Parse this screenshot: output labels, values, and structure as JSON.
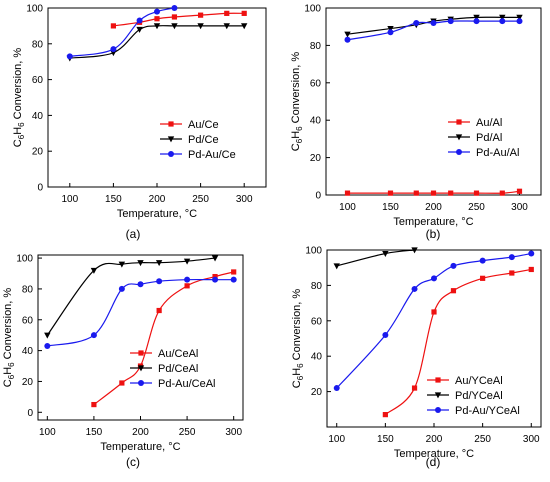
{
  "chart_data": [
    {
      "panel_label": "(a)",
      "type": "line",
      "xlabel": "Temperature, °C",
      "ylabel": {
        "prefix": "C",
        "sub1": "6",
        "mid": "H",
        "sub2": "6",
        "suffix": " Conversion, %"
      },
      "xlim": [
        75,
        325
      ],
      "ylim": [
        0,
        100
      ],
      "xticks": [
        "100",
        "150",
        "200",
        "250",
        "300"
      ],
      "yticks": [
        "0",
        "20",
        "40",
        "60",
        "80",
        "100"
      ],
      "legend_placement": "center-right",
      "series": [
        {
          "name": "Au/Ce",
          "color": "#ee1111",
          "marker": "square",
          "x": [
            150,
            180,
            200,
            220,
            250,
            280,
            300
          ],
          "y": [
            90,
            92,
            94,
            95,
            96,
            97,
            97
          ]
        },
        {
          "name": "Pd/Ce",
          "color": "#000000",
          "marker": "triangle-down",
          "x": [
            100,
            150,
            180,
            200,
            220,
            250,
            280,
            300
          ],
          "y": [
            72,
            75,
            88,
            90,
            90,
            90,
            90,
            90
          ]
        },
        {
          "name": "Pd-Au/Ce",
          "color": "#1a1aee",
          "marker": "circle",
          "x": [
            100,
            150,
            180,
            200,
            220
          ],
          "y": [
            73,
            77,
            93,
            98,
            100
          ]
        }
      ]
    },
    {
      "panel_label": "(b)",
      "type": "line",
      "xlabel": "Temperature, °C",
      "ylabel": {
        "prefix": "C",
        "sub1": "6",
        "mid": "H",
        "sub2": "6",
        "suffix": " Conversion, %"
      },
      "xlim": [
        75,
        325
      ],
      "ylim": [
        0,
        100
      ],
      "xticks": [
        "100",
        "150",
        "200",
        "250",
        "300"
      ],
      "yticks": [
        "0",
        "20",
        "40",
        "60",
        "80",
        "100"
      ],
      "legend_placement": "center-right",
      "series": [
        {
          "name": "Au/Al",
          "color": "#ee1111",
          "marker": "square",
          "x": [
            100,
            150,
            180,
            200,
            220,
            250,
            280,
            300
          ],
          "y": [
            1,
            1,
            1,
            1,
            1,
            1,
            1,
            2
          ]
        },
        {
          "name": "Pd/Al",
          "color": "#000000",
          "marker": "triangle-down",
          "x": [
            100,
            150,
            180,
            200,
            220,
            250,
            280,
            300
          ],
          "y": [
            86,
            89,
            91,
            93,
            94,
            95,
            95,
            95
          ]
        },
        {
          "name": "Pd-Au/Al",
          "color": "#1a1aee",
          "marker": "circle",
          "x": [
            100,
            150,
            180,
            200,
            220,
            250,
            280,
            300
          ],
          "y": [
            83,
            87,
            92,
            92,
            93,
            93,
            93,
            93
          ]
        }
      ]
    },
    {
      "panel_label": "(c)",
      "type": "line",
      "xlabel": "Temperature, °C",
      "ylabel": {
        "prefix": "C",
        "sub1": "6",
        "mid": "H",
        "sub2": "6",
        "suffix": " Conversion, %"
      },
      "xlim": [
        90,
        310
      ],
      "ylim": [
        -5,
        102
      ],
      "xticks": [
        "100",
        "150",
        "200",
        "250",
        "300"
      ],
      "yticks": [
        "0",
        "20",
        "40",
        "60",
        "80",
        "100"
      ],
      "legend_placement": "center-right",
      "series": [
        {
          "name": "Au/CeAl",
          "color": "#ee1111",
          "marker": "square",
          "x": [
            150,
            180,
            200,
            220,
            250,
            280,
            300
          ],
          "y": [
            5,
            19,
            30,
            66,
            82,
            88,
            91
          ]
        },
        {
          "name": "Pd/CeAl",
          "color": "#000000",
          "marker": "triangle-down",
          "x": [
            100,
            150,
            180,
            200,
            220,
            250,
            280
          ],
          "y": [
            50,
            92,
            96,
            97,
            97,
            98,
            100
          ]
        },
        {
          "name": "Pd-Au/CeAl",
          "color": "#1a1aee",
          "marker": "circle",
          "x": [
            100,
            150,
            180,
            200,
            220,
            250,
            280,
            300
          ],
          "y": [
            43,
            50,
            80,
            83,
            85,
            86,
            86,
            86
          ]
        }
      ]
    },
    {
      "panel_label": "(d)",
      "type": "line",
      "xlabel": "Temperature, °C",
      "ylabel": {
        "prefix": "C",
        "sub1": "6",
        "mid": "H",
        "sub2": "6",
        "suffix": " Conversion, %"
      },
      "xlim": [
        90,
        310
      ],
      "ylim": [
        0,
        100
      ],
      "xticks": [
        "100",
        "150",
        "200",
        "250",
        "300"
      ],
      "yticks": [
        "20",
        "40",
        "60",
        "80",
        "100"
      ],
      "legend_placement": "center-right",
      "series": [
        {
          "name": "Au/YCeAl",
          "color": "#ee1111",
          "marker": "square",
          "x": [
            150,
            180,
            200,
            220,
            250,
            280,
            300
          ],
          "y": [
            7,
            22,
            65,
            77,
            84,
            87,
            89
          ]
        },
        {
          "name": "Pd/YCeAl",
          "color": "#000000",
          "marker": "triangle-down",
          "x": [
            100,
            150,
            180
          ],
          "y": [
            91,
            98,
            100
          ]
        },
        {
          "name": "Pd-Au/YCeAl",
          "color": "#1a1aee",
          "marker": "circle",
          "x": [
            100,
            150,
            180,
            200,
            220,
            250,
            280,
            300
          ],
          "y": [
            22,
            52,
            78,
            84,
            91,
            94,
            96,
            98
          ]
        }
      ]
    }
  ]
}
